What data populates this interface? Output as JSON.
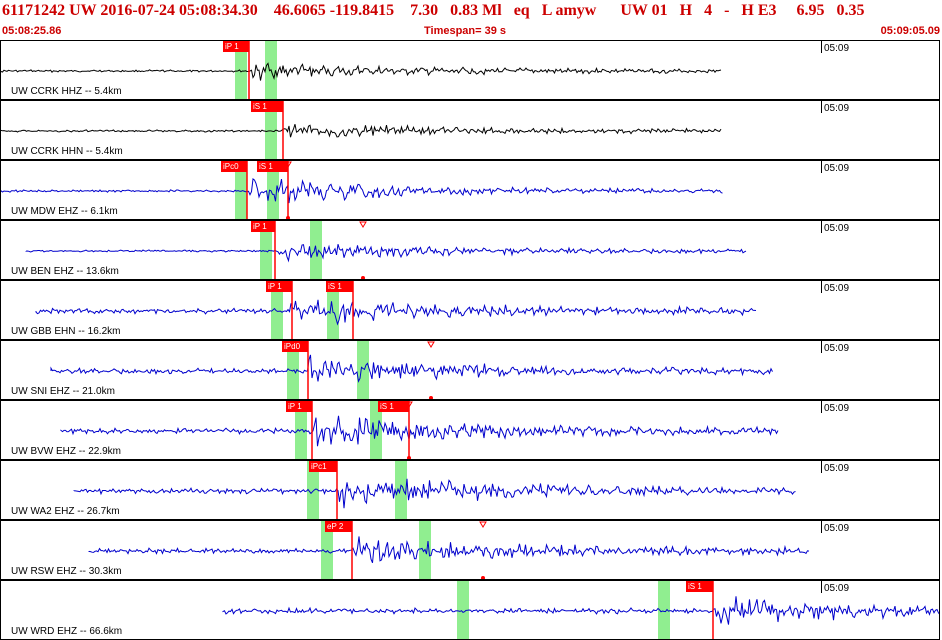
{
  "header": {
    "title": "61171242 UW 2016-07-24 05:08:34.30    46.6065 -119.8415    7.30   0.83 Ml   eq   L amyw      UW 01   H   4   -   H E3     6.95   0.35",
    "start_time": "05:08:25.86",
    "timespan": "Timespan=  39 s",
    "end_time": "05:09:05.09"
  },
  "colors": {
    "header_text": "#cc0000",
    "black_trace": "#000000",
    "blue_trace": "#0000cc",
    "pick": "#ff0000",
    "window": "#90ee90"
  },
  "channels": [
    {
      "label": "UW CCRK HHZ -- 5.4km",
      "time_label": "05:09",
      "trace_color": "#000000",
      "picks": [
        "iP 1"
      ]
    },
    {
      "label": "UW CCRK HHN -- 5.4km",
      "time_label": "05:09",
      "trace_color": "#000000",
      "picks": [
        "iS 1"
      ]
    },
    {
      "label": "UW MDW EHZ -- 6.1km",
      "time_label": "05:09",
      "trace_color": "#0000cc",
      "picks": [
        "iPc0",
        "iS 1"
      ]
    },
    {
      "label": "UW BEN EHZ -- 13.6km",
      "time_label": "05:09",
      "trace_color": "#0000cc",
      "picks": [
        "iP 1"
      ]
    },
    {
      "label": "UW GBB EHN -- 16.2km",
      "time_label": "05:09",
      "trace_color": "#0000cc",
      "picks": [
        "iP 1",
        "iS 1"
      ]
    },
    {
      "label": "UW SNI EHZ -- 21.0km",
      "time_label": "05:09",
      "trace_color": "#0000cc",
      "picks": [
        "iPd0"
      ]
    },
    {
      "label": "UW BVW EHZ -- 22.9km",
      "time_label": "05:09",
      "trace_color": "#0000cc",
      "picks": [
        "iP 1",
        "iS 1"
      ]
    },
    {
      "label": "UW WA2 EHZ -- 26.7km",
      "time_label": "05:09",
      "trace_color": "#0000cc",
      "picks": [
        "iPc1"
      ]
    },
    {
      "label": "UW RSW EHZ -- 30.3km",
      "time_label": "05:09",
      "trace_color": "#0000cc",
      "picks": [
        "eP 2"
      ]
    },
    {
      "label": "UW WRD EHZ -- 66.6km",
      "time_label": "05:09",
      "trace_color": "#0000cc",
      "picks": [
        "iS 1"
      ]
    }
  ]
}
